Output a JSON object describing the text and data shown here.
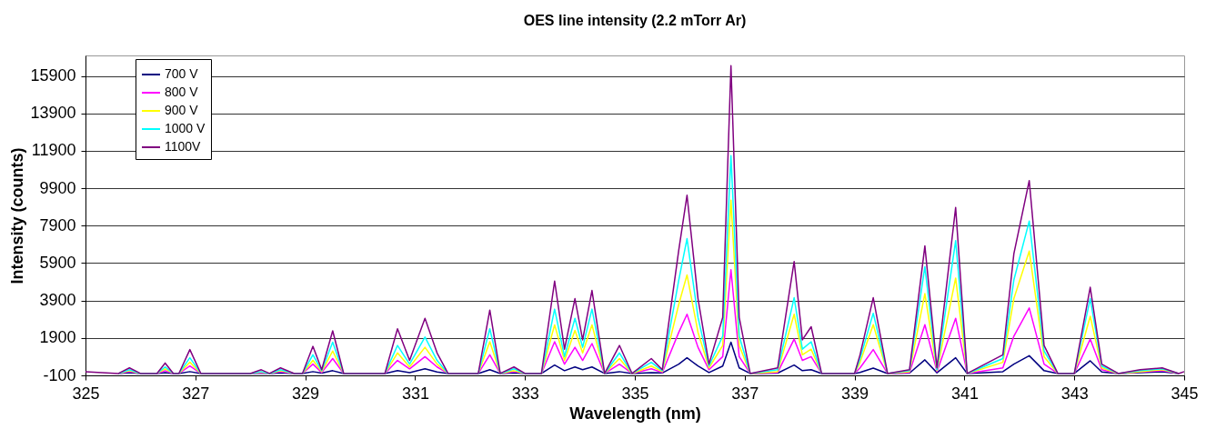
{
  "chart_data": {
    "type": "line",
    "title": "OES line intensity (2.2 mTorr Ar)",
    "xlabel": "Wavelength (nm)",
    "ylabel": "Intensity (counts)",
    "x": [
      325.0,
      325.6,
      325.8,
      326.0,
      326.3,
      326.45,
      326.6,
      326.7,
      326.9,
      327.1,
      328.0,
      328.2,
      328.35,
      328.55,
      328.8,
      328.95,
      329.14,
      329.3,
      329.5,
      329.7,
      330.45,
      330.68,
      330.9,
      331.18,
      331.4,
      331.6,
      332.15,
      332.36,
      332.55,
      332.8,
      333.0,
      333.3,
      333.54,
      333.72,
      333.91,
      334.05,
      334.22,
      334.45,
      334.72,
      334.95,
      335.3,
      335.5,
      335.8,
      335.95,
      336.15,
      336.35,
      336.6,
      336.75,
      336.9,
      337.1,
      337.6,
      337.9,
      338.05,
      338.21,
      338.4,
      339.0,
      339.1,
      339.34,
      339.6,
      340.0,
      340.28,
      340.5,
      340.84,
      341.05,
      341.7,
      341.9,
      342.18,
      342.45,
      342.7,
      343.0,
      343.29,
      343.5,
      343.8,
      344.2,
      344.6,
      344.9,
      345.0
    ],
    "series": [
      {
        "name": "700 V",
        "color": "#000080",
        "values": [
          null,
          0,
          50,
          0,
          0,
          50,
          0,
          0,
          100,
          0,
          0,
          20,
          0,
          30,
          0,
          0,
          100,
          20,
          150,
          0,
          0,
          150,
          50,
          250,
          80,
          0,
          0,
          200,
          0,
          30,
          0,
          0,
          450,
          150,
          350,
          200,
          350,
          0,
          100,
          0,
          50,
          30,
          500,
          840,
          400,
          50,
          400,
          1670,
          300,
          0,
          20,
          450,
          150,
          200,
          0,
          0,
          60,
          290,
          0,
          20,
          730,
          40,
          840,
          0,
          100,
          500,
          950,
          150,
          0,
          0,
          680,
          80,
          0,
          50,
          100,
          0,
          null
        ]
      },
      {
        "name": "800 V",
        "color": "#ff00ff",
        "values": [
          null,
          0,
          100,
          0,
          0,
          150,
          0,
          0,
          400,
          0,
          0,
          50,
          0,
          100,
          0,
          0,
          500,
          50,
          800,
          0,
          0,
          700,
          250,
          900,
          350,
          0,
          0,
          1000,
          0,
          100,
          0,
          0,
          1700,
          500,
          1400,
          700,
          1600,
          0,
          500,
          0,
          250,
          50,
          2200,
          3170,
          1400,
          200,
          900,
          5550,
          900,
          0,
          50,
          1840,
          700,
          900,
          0,
          0,
          300,
          1280,
          0,
          50,
          2610,
          100,
          2950,
          0,
          300,
          2000,
          3500,
          500,
          0,
          0,
          1840,
          200,
          0,
          80,
          150,
          0,
          null
        ]
      },
      {
        "name": "900 V",
        "color": "#ffff00",
        "values": [
          null,
          0,
          150,
          0,
          0,
          250,
          0,
          0,
          600,
          0,
          0,
          80,
          0,
          150,
          0,
          0,
          700,
          100,
          1200,
          0,
          0,
          1100,
          350,
          1400,
          500,
          0,
          0,
          1700,
          0,
          150,
          0,
          0,
          2600,
          700,
          2300,
          1100,
          2600,
          0,
          800,
          0,
          400,
          100,
          3700,
          5270,
          2200,
          300,
          1500,
          9260,
          1500,
          0,
          100,
          3170,
          1000,
          1300,
          0,
          0,
          600,
          2610,
          0,
          100,
          4270,
          150,
          5100,
          0,
          600,
          4000,
          6540,
          900,
          0,
          0,
          3060,
          300,
          0,
          100,
          200,
          0,
          null
        ]
      },
      {
        "name": "1000 V",
        "color": "#00ffff",
        "values": [
          null,
          0,
          200,
          0,
          0,
          350,
          0,
          0,
          840,
          0,
          0,
          100,
          0,
          200,
          0,
          0,
          1000,
          150,
          1670,
          0,
          0,
          1500,
          500,
          1950,
          700,
          0,
          0,
          2390,
          0,
          250,
          0,
          0,
          3440,
          900,
          2950,
          1400,
          3440,
          0,
          1100,
          0,
          600,
          150,
          5000,
          7210,
          3000,
          400,
          2000,
          11640,
          2000,
          0,
          200,
          4050,
          1300,
          1700,
          0,
          0,
          800,
          3220,
          0,
          150,
          5710,
          200,
          7100,
          0,
          800,
          5000,
          8150,
          1200,
          0,
          0,
          4000,
          400,
          0,
          150,
          250,
          0,
          null
        ]
      },
      {
        "name": "1100V",
        "color": "#800080",
        "values": [
          100,
          0,
          300,
          0,
          0,
          560,
          0,
          0,
          1280,
          0,
          0,
          200,
          0,
          300,
          0,
          0,
          1450,
          200,
          2280,
          0,
          0,
          2390,
          700,
          2950,
          1100,
          0,
          0,
          3390,
          0,
          350,
          0,
          0,
          4940,
          1300,
          4000,
          1800,
          4440,
          0,
          1500,
          0,
          800,
          200,
          6600,
          9530,
          4000,
          500,
          3000,
          16450,
          3000,
          0,
          300,
          5990,
          1800,
          2500,
          0,
          0,
          1000,
          4050,
          0,
          200,
          6820,
          300,
          8870,
          0,
          1000,
          6400,
          10310,
          1500,
          0,
          0,
          4610,
          500,
          0,
          200,
          300,
          0,
          100
        ]
      }
    ],
    "xlim": [
      325,
      345
    ],
    "xticks": [
      325,
      327,
      329,
      331,
      333,
      335,
      337,
      339,
      341,
      343,
      345
    ],
    "ylim": [
      -100,
      17000
    ],
    "yticks": [
      -100,
      1900,
      3900,
      5900,
      7900,
      9900,
      11900,
      13900,
      15900
    ],
    "grid": "y",
    "legend": "top left",
    "marker": "none",
    "line_style": "solid"
  }
}
